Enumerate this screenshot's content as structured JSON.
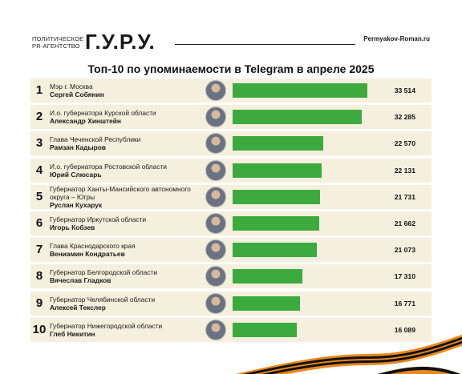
{
  "header": {
    "brand_small_line1": "ПОЛИТИЧЕСКОЕ",
    "brand_small_line2": "PR-АГЕНТСТВО",
    "brand_big": "Г.У.Р.У.",
    "site": "Permyakov-Roman.ru"
  },
  "colors": {
    "bar": "#3daa3f",
    "row_bg": "#f5efdd"
  },
  "chart_data": {
    "type": "bar",
    "orientation": "horizontal",
    "title": "Топ-10 по упоминаемости в Telegram в апреле 2025",
    "xlabel": "",
    "ylabel": "",
    "xlim": [
      0,
      36000
    ],
    "grid": false,
    "categories": [
      "Сергей Собянин",
      "Александр Хинштейн",
      "Рамзан Кадыров",
      "Юрий Слюсарь",
      "Руслан Кухарук",
      "Игорь Кобзев",
      "Вениамин Кондратьев",
      "Вячеслав Гладков",
      "Алексей Текслер",
      "Глеб Никитин"
    ],
    "values": [
      33514,
      32285,
      22570,
      22131,
      21731,
      21662,
      21073,
      17310,
      16771,
      16089
    ],
    "rows": [
      {
        "rank": "1",
        "position": "Мэр г. Москва",
        "name": "Сергей Собянин",
        "value_label": "33 514"
      },
      {
        "rank": "2",
        "position": "И.о. губернатора Курской области",
        "name": "Александр Хинштейн",
        "value_label": "32 285"
      },
      {
        "rank": "3",
        "position": "Глава Чеченской Республики",
        "name": "Рамзан Кадыров",
        "value_label": "22 570"
      },
      {
        "rank": "4",
        "position": "И.о. губернатора Ростовской области",
        "name": "Юрий Слюсарь",
        "value_label": "22 131"
      },
      {
        "rank": "5",
        "position": "Губернатор Ханты-Мансийского автономного округа – Югры",
        "name": "Руслан Кухарук",
        "value_label": "21 731"
      },
      {
        "rank": "6",
        "position": "Губернатор Иркутской области",
        "name": "Игорь Кобзев",
        "value_label": "21 662"
      },
      {
        "rank": "7",
        "position": "Глава Краснодарского края",
        "name": "Вениамин Кондратьев",
        "value_label": "21 073"
      },
      {
        "rank": "8",
        "position": "Губернатор Белгородской области",
        "name": "Вячеслав Гладков",
        "value_label": "17 310"
      },
      {
        "rank": "9",
        "position": "Губернатор Челябинской области",
        "name": "Алексей Текслер",
        "value_label": "16 771"
      },
      {
        "rank": "10",
        "position": "Губернатор Нижегородской области",
        "name": "Глеб Никитин",
        "value_label": "16 089"
      }
    ]
  }
}
